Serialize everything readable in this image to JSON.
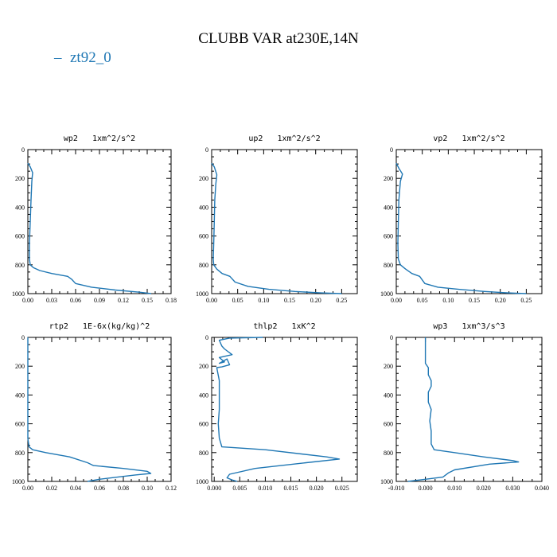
{
  "figure": {
    "title": "CLUBB VAR at230E,14N",
    "legend": [
      {
        "label": "zt92_0",
        "color": "#1f77b4"
      }
    ]
  },
  "chart_data": [
    {
      "type": "line",
      "title": "wp2   1xm^2/s^2",
      "xlim": [
        0,
        0.18
      ],
      "xticks": [
        "0.00",
        "0.03",
        "0.06",
        "0.09",
        "0.12",
        "0.15",
        "0.18"
      ],
      "ylim": [
        1000,
        0
      ],
      "yticks": [
        "0",
        "200",
        "400",
        "600",
        "800",
        "1000"
      ],
      "series": [
        {
          "name": "zt92_0",
          "color": "#1f77b4",
          "x": [
            0.0,
            0.003,
            0.006,
            0.005,
            0.004,
            0.003,
            0.002,
            0.002,
            0.003,
            0.007,
            0.015,
            0.03,
            0.05,
            0.055,
            0.06,
            0.08,
            0.11,
            0.14,
            0.155
          ],
          "y": [
            95,
            120,
            160,
            220,
            350,
            500,
            650,
            760,
            800,
            820,
            840,
            860,
            880,
            900,
            930,
            955,
            975,
            990,
            1000
          ]
        }
      ]
    },
    {
      "type": "line",
      "title": "up2   1xm^2/s^2",
      "xlim": [
        0,
        0.28
      ],
      "xticks": [
        "0.00",
        "0.05",
        "0.10",
        "0.15",
        "0.20",
        "0.25"
      ],
      "ylim": [
        1000,
        0
      ],
      "yticks": [
        "0",
        "200",
        "400",
        "600",
        "800",
        "1000"
      ],
      "series": [
        {
          "name": "zt92_0",
          "color": "#1f77b4",
          "x": [
            0.0,
            0.005,
            0.01,
            0.008,
            0.006,
            0.005,
            0.004,
            0.003,
            0.004,
            0.01,
            0.02,
            0.035,
            0.045,
            0.07,
            0.11,
            0.16,
            0.21,
            0.25
          ],
          "y": [
            95,
            120,
            175,
            240,
            350,
            500,
            650,
            760,
            800,
            830,
            860,
            880,
            920,
            950,
            970,
            985,
            995,
            1000
          ]
        }
      ]
    },
    {
      "type": "line",
      "title": "vp2   1xm^2/s^2",
      "xlim": [
        0,
        0.28
      ],
      "xticks": [
        "0.00",
        "0.05",
        "0.10",
        "0.15",
        "0.20",
        "0.25"
      ],
      "ylim": [
        1000,
        0
      ],
      "yticks": [
        "0",
        "200",
        "400",
        "600",
        "800",
        "1000"
      ],
      "series": [
        {
          "name": "zt92_0",
          "color": "#1f77b4",
          "x": [
            0.0,
            0.005,
            0.012,
            0.008,
            0.005,
            0.004,
            0.003,
            0.004,
            0.008,
            0.018,
            0.03,
            0.045,
            0.055,
            0.08,
            0.12,
            0.17,
            0.215,
            0.25
          ],
          "y": [
            95,
            130,
            170,
            220,
            350,
            500,
            650,
            760,
            800,
            830,
            860,
            880,
            930,
            955,
            970,
            985,
            995,
            1000
          ]
        }
      ]
    },
    {
      "type": "line",
      "title": "rtp2   1E-6x(kg/kg)^2",
      "xlim": [
        0,
        0.12
      ],
      "xticks": [
        "0.00",
        "0.02",
        "0.04",
        "0.06",
        "0.08",
        "0.10",
        "0.12"
      ],
      "ylim": [
        1000,
        0
      ],
      "yticks": [
        "0",
        "200",
        "400",
        "600",
        "800",
        "1000"
      ],
      "series": [
        {
          "name": "zt92_0",
          "color": "#1f77b4",
          "x": [
            0.0,
            0.0,
            0.0,
            0.001,
            0.004,
            0.015,
            0.035,
            0.05,
            0.055,
            0.08,
            0.1,
            0.103,
            0.09,
            0.08,
            0.06,
            0.05
          ],
          "y": [
            0,
            200,
            700,
            760,
            780,
            800,
            830,
            870,
            890,
            910,
            930,
            945,
            955,
            965,
            985,
            1000
          ]
        }
      ]
    },
    {
      "type": "line",
      "title": "thlp2   1xK^2",
      "xlim": [
        -0.0005,
        0.028
      ],
      "xticks": [
        "0.000",
        "0.005",
        "0.010",
        "0.015",
        "0.020",
        "0.025"
      ],
      "ylim": [
        1000,
        0
      ],
      "yticks": [
        "0",
        "200",
        "400",
        "600",
        "800",
        "1000"
      ],
      "series": [
        {
          "name": "zt92_0",
          "color": "#1f77b4",
          "x": [
            0.0095,
            0.003,
            0.001,
            0.0015,
            0.002,
            0.0035,
            0.001,
            0.002,
            0.001,
            0.0025,
            0.003,
            0.0015,
            0.0005,
            0.001,
            0.001,
            0.001,
            0.0008,
            0.001,
            0.0015,
            0.01,
            0.022,
            0.0245,
            0.018,
            0.008,
            0.003,
            0.0025,
            0.0035,
            0.0045
          ],
          "y": [
            0,
            5,
            20,
            60,
            80,
            120,
            140,
            170,
            180,
            150,
            190,
            205,
            210,
            300,
            400,
            500,
            600,
            700,
            760,
            780,
            830,
            845,
            870,
            910,
            950,
            975,
            990,
            1000
          ]
        }
      ]
    },
    {
      "type": "line",
      "title": "wp3   1xm^3/s^3",
      "xlim": [
        -0.01,
        0.04
      ],
      "xticks": [
        "-0.010",
        "0.000",
        "0.010",
        "0.020",
        "0.030",
        "0.040"
      ],
      "ylim": [
        1000,
        0
      ],
      "yticks": [
        "0",
        "200",
        "400",
        "600",
        "800",
        "1000"
      ],
      "series": [
        {
          "name": "zt92_0",
          "color": "#1f77b4",
          "x": [
            0.0,
            0.0,
            0.001,
            0.001,
            0.002,
            0.002,
            0.001,
            0.001,
            0.002,
            0.0015,
            0.002,
            0.002,
            0.003,
            0.01,
            0.02,
            0.03,
            0.032,
            0.022,
            0.01,
            0.008,
            0.006,
            0.0,
            -0.006
          ],
          "y": [
            0,
            180,
            210,
            260,
            300,
            340,
            380,
            450,
            500,
            580,
            650,
            740,
            780,
            800,
            830,
            855,
            865,
            880,
            920,
            940,
            970,
            985,
            1000
          ]
        }
      ]
    }
  ]
}
